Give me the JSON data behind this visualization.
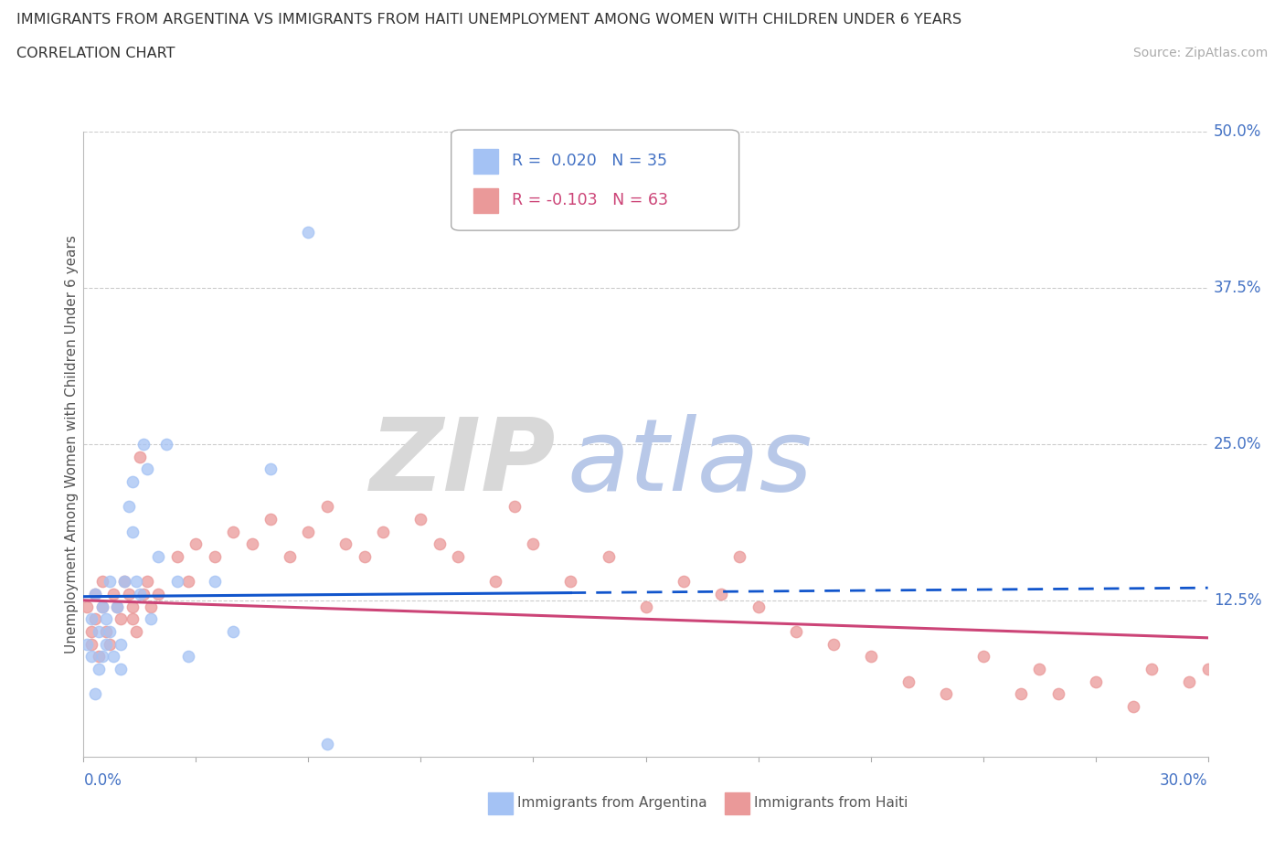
{
  "title_line1": "IMMIGRANTS FROM ARGENTINA VS IMMIGRANTS FROM HAITI UNEMPLOYMENT AMONG WOMEN WITH CHILDREN UNDER 6 YEARS",
  "title_line2": "CORRELATION CHART",
  "source": "Source: ZipAtlas.com",
  "ylabel": "Unemployment Among Women with Children Under 6 years",
  "right_yticklabels": [
    "12.5%",
    "25.0%",
    "37.5%",
    "50.0%"
  ],
  "right_ytick_vals": [
    0.125,
    0.25,
    0.375,
    0.5
  ],
  "legend_argentina": "Immigrants from Argentina",
  "legend_haiti": "Immigrants from Haiti",
  "R_argentina": 0.02,
  "N_argentina": 35,
  "R_haiti": -0.103,
  "N_haiti": 63,
  "color_argentina": "#a4c2f4",
  "color_haiti": "#ea9999",
  "color_argentina_line": "#1155cc",
  "color_haiti_line": "#cc4477",
  "xlim": [
    0.0,
    0.3
  ],
  "ylim": [
    0.0,
    0.5
  ],
  "background_color": "#ffffff",
  "grid_color": "#cccccc",
  "arg_x": [
    0.001,
    0.002,
    0.002,
    0.003,
    0.003,
    0.004,
    0.004,
    0.005,
    0.005,
    0.006,
    0.006,
    0.007,
    0.007,
    0.008,
    0.009,
    0.01,
    0.01,
    0.011,
    0.012,
    0.013,
    0.013,
    0.014,
    0.015,
    0.016,
    0.017,
    0.018,
    0.02,
    0.022,
    0.025,
    0.028,
    0.035,
    0.04,
    0.05,
    0.06,
    0.065
  ],
  "arg_y": [
    0.09,
    0.11,
    0.08,
    0.13,
    0.05,
    0.1,
    0.07,
    0.08,
    0.12,
    0.11,
    0.09,
    0.14,
    0.1,
    0.08,
    0.12,
    0.09,
    0.07,
    0.14,
    0.2,
    0.22,
    0.18,
    0.14,
    0.13,
    0.25,
    0.23,
    0.11,
    0.16,
    0.25,
    0.14,
    0.08,
    0.14,
    0.1,
    0.23,
    0.42,
    0.01
  ],
  "hai_x": [
    0.001,
    0.002,
    0.002,
    0.003,
    0.003,
    0.004,
    0.005,
    0.005,
    0.006,
    0.007,
    0.008,
    0.009,
    0.01,
    0.011,
    0.012,
    0.013,
    0.013,
    0.014,
    0.015,
    0.016,
    0.017,
    0.018,
    0.02,
    0.025,
    0.028,
    0.03,
    0.035,
    0.04,
    0.045,
    0.05,
    0.055,
    0.06,
    0.065,
    0.07,
    0.075,
    0.08,
    0.09,
    0.095,
    0.1,
    0.11,
    0.115,
    0.12,
    0.13,
    0.14,
    0.15,
    0.16,
    0.17,
    0.175,
    0.18,
    0.19,
    0.2,
    0.21,
    0.22,
    0.23,
    0.24,
    0.25,
    0.255,
    0.26,
    0.27,
    0.28,
    0.285,
    0.295,
    0.3
  ],
  "hai_y": [
    0.12,
    0.1,
    0.09,
    0.13,
    0.11,
    0.08,
    0.14,
    0.12,
    0.1,
    0.09,
    0.13,
    0.12,
    0.11,
    0.14,
    0.13,
    0.12,
    0.11,
    0.1,
    0.24,
    0.13,
    0.14,
    0.12,
    0.13,
    0.16,
    0.14,
    0.17,
    0.16,
    0.18,
    0.17,
    0.19,
    0.16,
    0.18,
    0.2,
    0.17,
    0.16,
    0.18,
    0.19,
    0.17,
    0.16,
    0.14,
    0.2,
    0.17,
    0.14,
    0.16,
    0.12,
    0.14,
    0.13,
    0.16,
    0.12,
    0.1,
    0.09,
    0.08,
    0.06,
    0.05,
    0.08,
    0.05,
    0.07,
    0.05,
    0.06,
    0.04,
    0.07,
    0.06,
    0.07
  ],
  "arg_line_solid_end": 0.13,
  "trend_arg_y0": 0.128,
  "trend_arg_y1": 0.135,
  "trend_hai_y0": 0.125,
  "trend_hai_y1": 0.095
}
